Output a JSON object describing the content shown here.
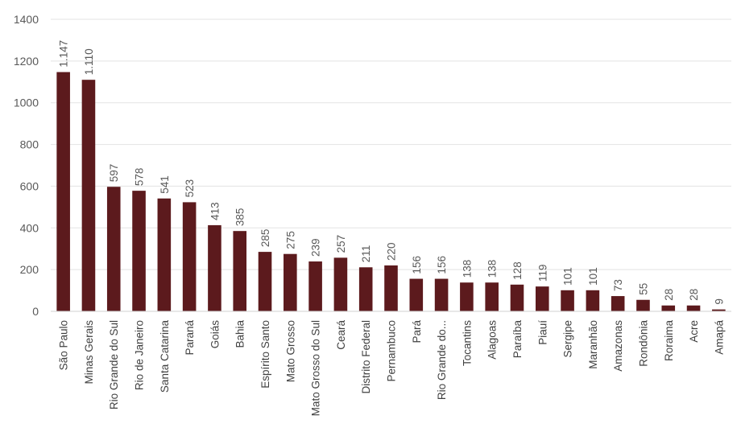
{
  "chart_data": {
    "type": "bar",
    "title": "",
    "xlabel": "",
    "ylabel": "",
    "ylim": [
      0,
      1400
    ],
    "yticks": [
      "0",
      "200",
      "400",
      "600",
      "800",
      "1000",
      "1200",
      "1400"
    ],
    "grid": true,
    "legend": "none",
    "bar_color": "#5c1a1d",
    "categories": [
      "São Paulo",
      "Minas Gerais",
      "Rio Grande do Sul",
      "Rio de Janeiro",
      "Santa Catarina",
      "Paraná",
      "Goiás",
      "Bahia",
      "Espírito Santo",
      "Mato Grosso",
      "Mato Grosso do Sul",
      "Ceará",
      "Distrito Federal",
      "Pernambuco",
      "Pará",
      "Rio Grande do...",
      "Tocantins",
      "Alagoas",
      "Paraíba",
      "Piauí",
      "Sergipe",
      "Maranhão",
      "Amazonas",
      "Rondônia",
      "Roraima",
      "Acre",
      "Amapá"
    ],
    "values": [
      1147,
      1110,
      597,
      578,
      541,
      523,
      413,
      385,
      285,
      275,
      239,
      257,
      211,
      220,
      156,
      156,
      138,
      138,
      128,
      119,
      101,
      101,
      73,
      55,
      28,
      28,
      9
    ],
    "data_labels": [
      "1.147",
      "1.110",
      "597",
      "578",
      "541",
      "523",
      "413",
      "385",
      "285",
      "275",
      "239",
      "257",
      "211",
      "220",
      "156",
      "156",
      "138",
      "138",
      "128",
      "119",
      "101",
      "101",
      "73",
      "55",
      "28",
      "28",
      "9"
    ]
  }
}
